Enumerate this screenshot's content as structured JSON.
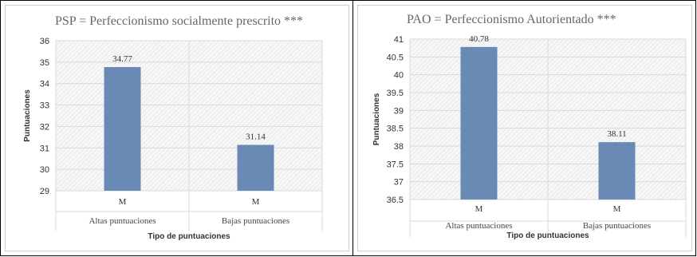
{
  "chart_data": [
    {
      "type": "bar",
      "title": "PSP = Perfeccionismo socialmente prescrito ***",
      "xlabel": "Tipo de puntuaciones",
      "ylabel": "Puntuaciones",
      "ylim": [
        29,
        36
      ],
      "yticks": [
        "29",
        "30",
        "31",
        "32",
        "33",
        "34",
        "35",
        "36"
      ],
      "categories": [
        "Altas puntuaciones",
        "Bajas puntuaciones"
      ],
      "inner_labels": [
        "M",
        "M"
      ],
      "values": [
        34.77,
        31.14
      ],
      "value_labels": [
        "34.77",
        "31.14"
      ],
      "bar_color": "#6a8ab6",
      "grid": true
    },
    {
      "type": "bar",
      "title": "PAO = Perfeccionismo  Autorientado  ***",
      "xlabel": "Tipo de puntuaciones",
      "ylabel": "Puntuaciones",
      "ylim": [
        36.5,
        41
      ],
      "yticks": [
        "36.5",
        "37",
        "37.5",
        "38",
        "38.5",
        "39",
        "39.5",
        "40",
        "40.5",
        "41"
      ],
      "categories": [
        "Altas puntuaciones",
        "Bajas puntuaciones"
      ],
      "inner_labels": [
        "M",
        "M"
      ],
      "values": [
        40.78,
        38.11
      ],
      "value_labels": [
        "40.78",
        "38.11"
      ],
      "bar_color": "#6a8ab6",
      "grid": true
    }
  ]
}
